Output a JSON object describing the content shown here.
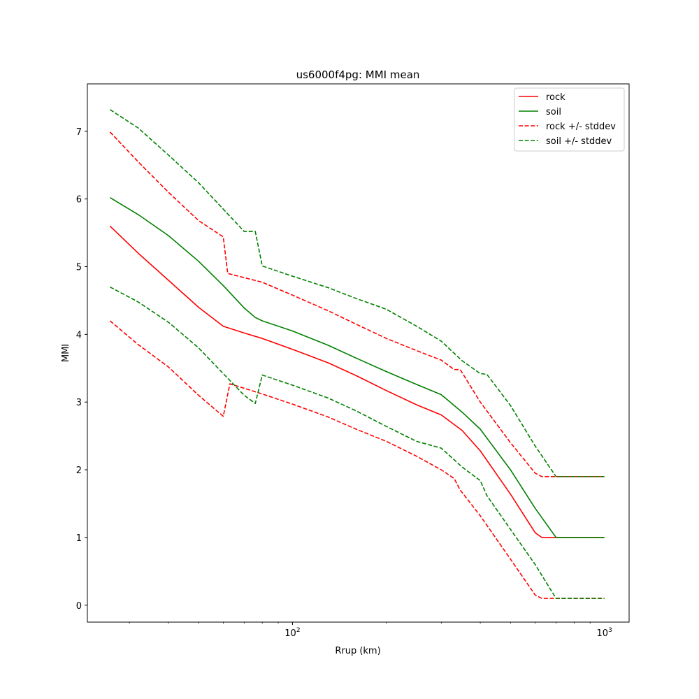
{
  "chart_data": {
    "type": "line",
    "title": "us6000f4pg: MMI mean",
    "xlabel": "Rrup (km)",
    "ylabel": "MMI",
    "xscale": "log",
    "xlim": [
      22,
      1200
    ],
    "ylim": [
      -0.25,
      7.7
    ],
    "xticks": [
      {
        "value": 100,
        "base": "10",
        "exp": "2"
      },
      {
        "value": 1000,
        "base": "10",
        "exp": "3"
      }
    ],
    "yticks": [
      0,
      1,
      2,
      3,
      4,
      5,
      6,
      7
    ],
    "grid": false,
    "legend_position": "top-right",
    "series": [
      {
        "name": "rock",
        "color": "#ff0000",
        "dash": "solid",
        "legend": true,
        "x": [
          26,
          32,
          40,
          50,
          60,
          70,
          80,
          100,
          130,
          160,
          200,
          250,
          300,
          350,
          400,
          500,
          600,
          630,
          700,
          1000
        ],
        "y": [
          5.6,
          5.2,
          4.8,
          4.4,
          4.12,
          4.02,
          3.94,
          3.78,
          3.58,
          3.39,
          3.17,
          2.96,
          2.81,
          2.58,
          2.28,
          1.64,
          1.07,
          1.0,
          1.0,
          1.0
        ]
      },
      {
        "name": "soil",
        "color": "#008000",
        "dash": "solid",
        "legend": true,
        "x": [
          26,
          32,
          40,
          50,
          60,
          70,
          76,
          80,
          100,
          130,
          160,
          200,
          250,
          300,
          350,
          400,
          500,
          600,
          700,
          1000
        ],
        "y": [
          6.02,
          5.77,
          5.46,
          5.08,
          4.72,
          4.39,
          4.25,
          4.2,
          4.05,
          3.84,
          3.65,
          3.45,
          3.26,
          3.11,
          2.85,
          2.6,
          2.0,
          1.43,
          1.0,
          1.0
        ]
      },
      {
        "name": "rock +/- stddev",
        "color": "#ff0000",
        "dash": "dashed",
        "legend": true,
        "x": [
          26,
          32,
          40,
          50,
          60,
          62,
          80,
          100,
          130,
          160,
          200,
          250,
          300,
          330,
          345,
          400,
          500,
          600,
          630,
          700,
          1000
        ],
        "y": [
          6.99,
          6.55,
          6.1,
          5.68,
          5.44,
          4.9,
          4.77,
          4.58,
          4.35,
          4.15,
          3.94,
          3.76,
          3.62,
          3.48,
          3.48,
          3.0,
          2.4,
          1.95,
          1.9,
          1.9,
          1.9
        ]
      },
      {
        "name": "rock lower",
        "color": "#ff0000",
        "dash": "dashed",
        "legend": false,
        "x": [
          26,
          32,
          40,
          50,
          60,
          63,
          80,
          100,
          130,
          160,
          200,
          250,
          300,
          330,
          345,
          400,
          500,
          600,
          630,
          700,
          1000
        ],
        "y": [
          4.2,
          3.85,
          3.52,
          3.1,
          2.79,
          3.27,
          3.12,
          2.97,
          2.78,
          2.6,
          2.42,
          2.2,
          2.0,
          1.87,
          1.7,
          1.32,
          0.68,
          0.15,
          0.1,
          0.1,
          0.1
        ]
      },
      {
        "name": "soil +/- stddev",
        "color": "#008000",
        "dash": "dashed",
        "legend": true,
        "x": [
          26,
          32,
          40,
          50,
          60,
          70,
          76,
          80,
          100,
          130,
          160,
          200,
          250,
          300,
          350,
          400,
          420,
          500,
          600,
          700,
          1000
        ],
        "y": [
          7.32,
          7.05,
          6.65,
          6.24,
          5.85,
          5.52,
          5.52,
          5.01,
          4.86,
          4.69,
          4.53,
          4.37,
          4.12,
          3.9,
          3.61,
          3.42,
          3.41,
          2.95,
          2.35,
          1.9,
          1.9
        ]
      },
      {
        "name": "soil lower",
        "color": "#008000",
        "dash": "dashed",
        "legend": false,
        "x": [
          26,
          32,
          40,
          50,
          60,
          70,
          76,
          80,
          100,
          130,
          160,
          200,
          250,
          300,
          350,
          400,
          420,
          500,
          600,
          700,
          1000
        ],
        "y": [
          4.7,
          4.48,
          4.18,
          3.8,
          3.42,
          3.1,
          2.98,
          3.4,
          3.25,
          3.06,
          2.87,
          2.64,
          2.42,
          2.32,
          2.04,
          1.84,
          1.62,
          1.12,
          0.6,
          0.1,
          0.1
        ]
      }
    ]
  }
}
